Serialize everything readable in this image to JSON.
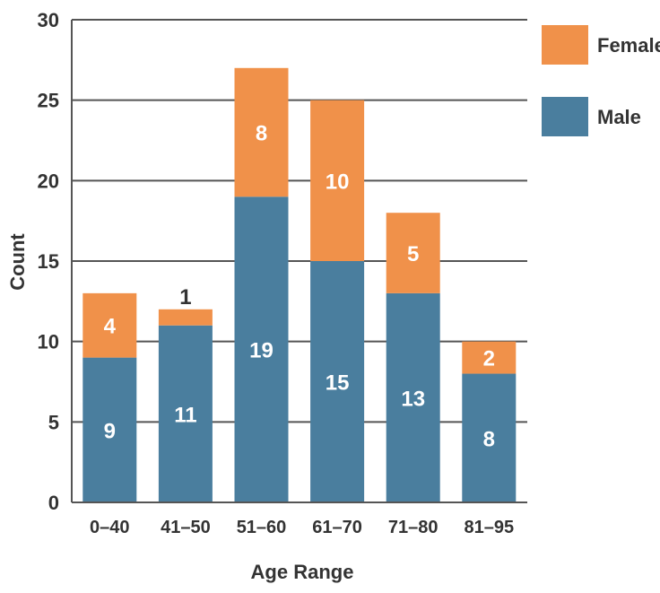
{
  "colors": {
    "female": "#F0914A",
    "male": "#4A7E9E",
    "grid": "#555555",
    "text": "#333333"
  },
  "chart_data": {
    "type": "bar",
    "stacked": true,
    "title": "",
    "xlabel": "Age Range",
    "ylabel": "Count",
    "ylim": [
      0,
      30
    ],
    "yticks": [
      0,
      5,
      10,
      15,
      20,
      25,
      30
    ],
    "grid": true,
    "legend_position": "right",
    "categories": [
      "0–40",
      "41–50",
      "51–60",
      "61–70",
      "71–80",
      "81–95"
    ],
    "series": [
      {
        "name": "Male",
        "values": [
          9,
          11,
          19,
          15,
          13,
          8
        ]
      },
      {
        "name": "Female",
        "values": [
          4,
          1,
          8,
          10,
          5,
          2
        ]
      }
    ],
    "legend": [
      "Female",
      "Male"
    ]
  }
}
